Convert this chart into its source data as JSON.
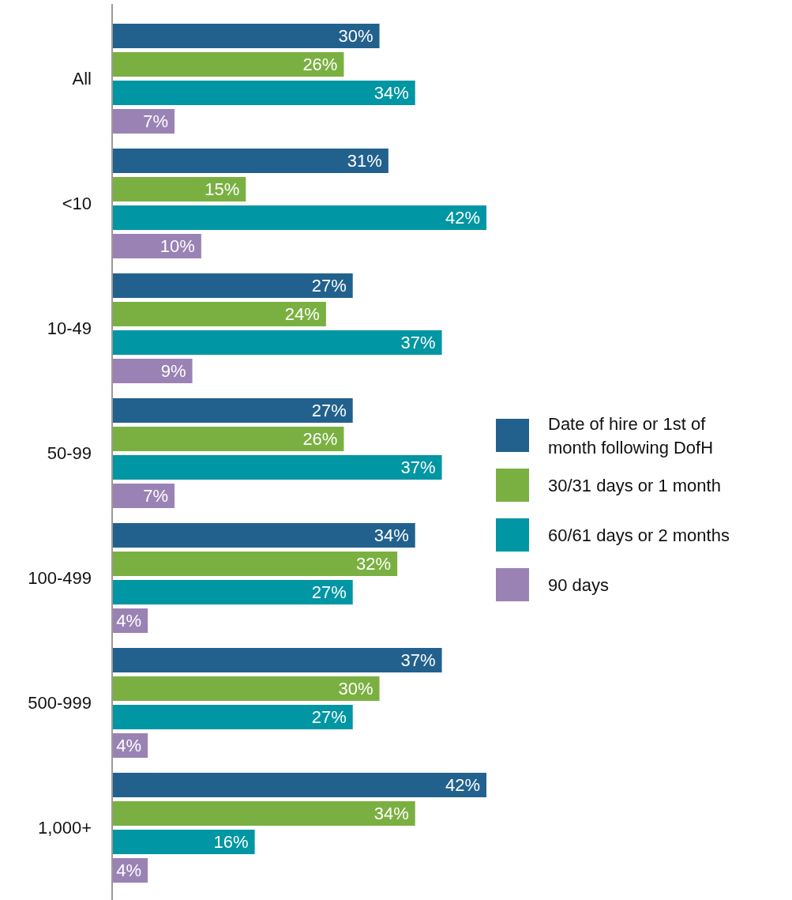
{
  "chart_data": {
    "type": "bar",
    "orientation": "horizontal",
    "categories": [
      "All",
      "<10",
      "10-49",
      "50-99",
      "100-499",
      "500-999",
      "1,000+"
    ],
    "series": [
      {
        "name": "Date of hire or 1st of month following DofH",
        "color": "#22618d",
        "values": [
          30,
          31,
          27,
          27,
          34,
          37,
          42
        ],
        "value_labels": [
          "30%",
          "31%",
          "27%",
          "27%",
          "34%",
          "37%",
          "42%"
        ]
      },
      {
        "name": "30/31 days or 1 month",
        "color": "#7ab041",
        "values": [
          26,
          15,
          24,
          26,
          32,
          30,
          34
        ],
        "value_labels": [
          "26%",
          "15%",
          "24%",
          "26%",
          "32%",
          "30%",
          "34%"
        ]
      },
      {
        "name": "60/61 days or 2 months",
        "color": "#0096a3",
        "values": [
          34,
          42,
          37,
          37,
          27,
          27,
          16
        ],
        "value_labels": [
          "34%",
          "42%",
          "37%",
          "37%",
          "27%",
          "27%",
          "16%"
        ]
      },
      {
        "name": "90 days",
        "color": "#9b82b4",
        "values": [
          7,
          10,
          9,
          7,
          4,
          4,
          4
        ],
        "value_labels": [
          "7%",
          "10%",
          "9%",
          "7%",
          "4%",
          "4%",
          "4%"
        ]
      }
    ],
    "legend": "right"
  }
}
